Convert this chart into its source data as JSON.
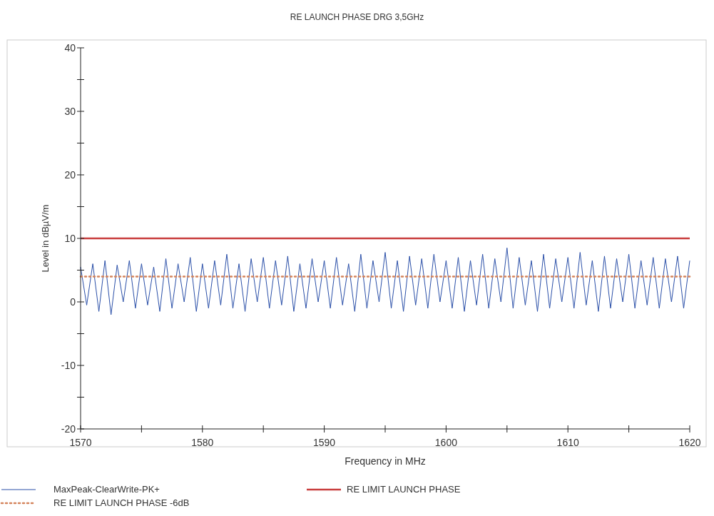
{
  "chart_data": {
    "type": "line",
    "title": "RE LAUNCH PHASE DRG 3,5GHz",
    "xlabel": "Frequency in MHz",
    "ylabel": "Level in dBµV/m",
    "xlim": [
      1570,
      1620
    ],
    "ylim": [
      -20,
      40
    ],
    "xticks": [
      1570,
      {
        "value": 1575,
        "label": null
      },
      1580,
      {
        "value": 1585,
        "label": null
      },
      1590,
      {
        "value": 1595,
        "label": null
      },
      1600,
      {
        "value": 1605,
        "label": null
      },
      1610,
      {
        "value": 1615,
        "label": null
      },
      1620
    ],
    "yticks": [
      -20,
      {
        "value": -15,
        "label": null
      },
      -10,
      {
        "value": -5,
        "label": null
      },
      0,
      {
        "value": 5,
        "label": null
      },
      10,
      {
        "value": 15,
        "label": null
      },
      20,
      {
        "value": 25,
        "label": null
      },
      30,
      {
        "value": 35,
        "label": null
      },
      40
    ],
    "grid": false,
    "legend": "bottom",
    "series": [
      {
        "name": "MaxPeak-ClearWrite-PK+",
        "color": "#2a4fa8",
        "line_style": "solid",
        "x": [
          1570,
          1570.5,
          1571,
          1571.5,
          1572,
          1572.5,
          1573,
          1573.5,
          1574,
          1574.5,
          1575,
          1575.5,
          1576,
          1576.5,
          1577,
          1577.5,
          1578,
          1578.5,
          1579,
          1579.5,
          1580,
          1580.5,
          1581,
          1581.5,
          1582,
          1582.5,
          1583,
          1583.5,
          1584,
          1584.5,
          1585,
          1585.5,
          1586,
          1586.5,
          1587,
          1587.5,
          1588,
          1588.5,
          1589,
          1589.5,
          1590,
          1590.5,
          1591,
          1591.5,
          1592,
          1592.5,
          1593,
          1593.5,
          1594,
          1594.5,
          1595,
          1595.5,
          1596,
          1596.5,
          1597,
          1597.5,
          1598,
          1598.5,
          1599,
          1599.5,
          1600,
          1600.5,
          1601,
          1601.5,
          1602,
          1602.5,
          1603,
          1603.5,
          1604,
          1604.5,
          1605,
          1605.5,
          1606,
          1606.5,
          1607,
          1607.5,
          1608,
          1608.5,
          1609,
          1609.5,
          1610,
          1610.5,
          1611,
          1611.5,
          1612,
          1612.5,
          1613,
          1613.5,
          1614,
          1614.5,
          1615,
          1615.5,
          1616,
          1616.5,
          1617,
          1617.5,
          1618,
          1618.5,
          1619,
          1619.5,
          1620
        ],
        "values": [
          5.5,
          -0.5,
          6,
          -1.5,
          6.5,
          -2,
          5.8,
          0,
          6.5,
          -1,
          6,
          -0.5,
          5.5,
          -1.5,
          6.8,
          -1,
          6,
          0,
          7,
          -1.5,
          6,
          -1,
          6.5,
          -0.5,
          7.5,
          -1,
          6,
          -1.5,
          6.8,
          0,
          7,
          -1,
          6.5,
          -0.5,
          7.2,
          -1.5,
          6,
          -1,
          6.8,
          0,
          6.5,
          -1,
          7,
          -0.5,
          6,
          -1.5,
          7.5,
          -1,
          6.5,
          0,
          7.8,
          -1,
          6.5,
          -1.5,
          7.2,
          -0.5,
          6.8,
          -1,
          7.5,
          0,
          6.5,
          -1,
          7,
          -1.5,
          6.5,
          -0.5,
          7.5,
          -1,
          6.8,
          0,
          8.5,
          -1,
          7,
          -0.5,
          6.5,
          -1.5,
          7.5,
          -1,
          6.8,
          0,
          7,
          -1,
          7.8,
          -0.5,
          6.5,
          -1.5,
          7.2,
          -1,
          6.8,
          0,
          7.5,
          -1,
          6.5,
          -0.5,
          7,
          -1,
          6.8,
          0,
          7.2,
          -1,
          6.5
        ]
      },
      {
        "name": "RE LIMIT LAUNCH PHASE -6dB",
        "color": "#d4845c",
        "line_style": "dotted",
        "x": [
          1570,
          1620
        ],
        "values": [
          4,
          4
        ]
      },
      {
        "name": "RE LIMIT LAUNCH PHASE",
        "color": "#c83c3c",
        "line_style": "solid",
        "x": [
          1570,
          1620
        ],
        "values": [
          10,
          10
        ]
      }
    ]
  }
}
